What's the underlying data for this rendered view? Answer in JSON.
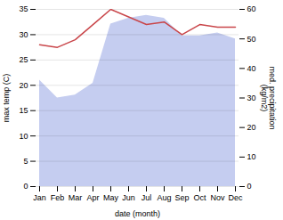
{
  "chart_data": {
    "type": "line",
    "categories": [
      "Jan",
      "Feb",
      "Mar",
      "Apr",
      "May",
      "Jun",
      "Jul",
      "Aug",
      "Sep",
      "Oct",
      "Nov",
      "Dec"
    ],
    "xlabel": "date (month)",
    "ylabel": "max temp (C)",
    "y2label": "med. precipitation\n(kg/m2)",
    "ylim": [
      0,
      35
    ],
    "yticks": [
      0,
      5,
      10,
      15,
      20,
      25,
      30,
      35
    ],
    "y2lim": [
      0,
      60
    ],
    "y2ticks": [
      0,
      10,
      20,
      30,
      40,
      50,
      60
    ],
    "grid": true,
    "series": [
      {
        "type": "area",
        "axis": "y2",
        "color": "#c5cdf0",
        "values": [
          36,
          30,
          31,
          35,
          55,
          57,
          58,
          57,
          51,
          51,
          52,
          50
        ]
      },
      {
        "type": "line",
        "color": "#c9464a",
        "values": [
          28,
          27.5,
          29,
          32,
          35,
          33.5,
          32,
          32.5,
          30,
          32,
          31.5,
          31.5
        ]
      }
    ]
  }
}
